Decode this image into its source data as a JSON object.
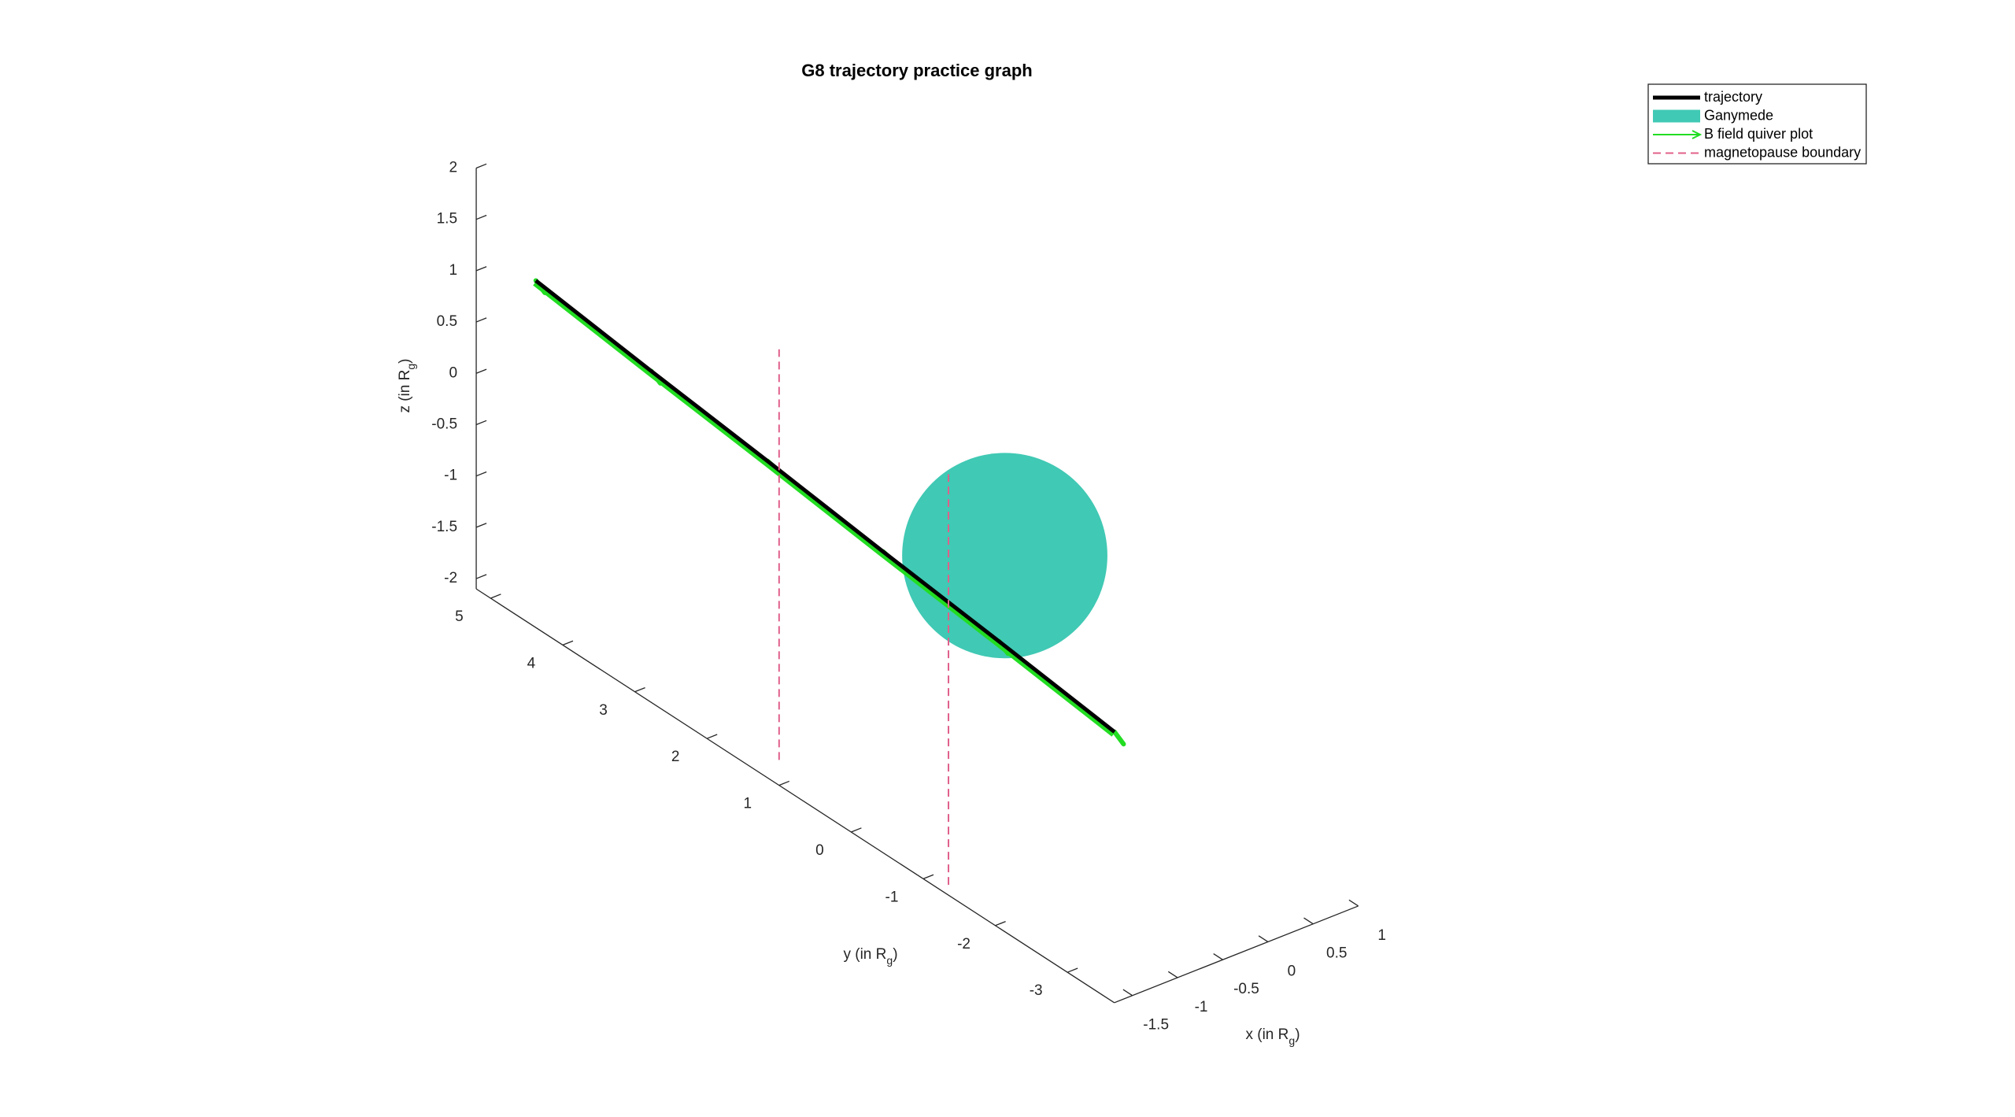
{
  "chart_data": {
    "type": "line3d",
    "title": "G8 trajectory practice graph",
    "xlabel": [
      "x (in R",
      "g",
      ")"
    ],
    "ylabel": [
      "y (in R",
      "g",
      ")"
    ],
    "zlabel": [
      "z (in R",
      "g",
      ")"
    ],
    "xlim": [
      -1.7,
      1.0
    ],
    "ylim": [
      -3.65,
      5.2
    ],
    "zlim": [
      -2.1,
      2
    ],
    "xticks": [
      -1.5,
      -1,
      -0.5,
      0,
      0.5,
      1
    ],
    "yticks": [
      -3,
      -2,
      -1,
      0,
      1,
      2,
      3,
      4,
      5
    ],
    "zticks": [
      -2,
      -1.5,
      -1,
      -0.5,
      0,
      0.5,
      1,
      1.5,
      2
    ],
    "legend": "northeast",
    "series": [
      {
        "name": "trajectory",
        "type": "line",
        "color": "#000000",
        "x": [
          -1.2,
          -0.8,
          -0.4,
          0,
          0.4,
          0.8
        ],
        "y": [
          5,
          3.9,
          2.79,
          1.69,
          0.58,
          -0.52
        ],
        "z": [
          0.82,
          0.3,
          -0.21,
          -0.73,
          -1.24,
          -1.76
        ]
      },
      {
        "name": "Ganymede",
        "type": "sphere",
        "color": "#40c9b4",
        "center": [
          0,
          0,
          0
        ],
        "radius": 1
      },
      {
        "name": "B field quiver plot",
        "type": "quiver",
        "color": "#22dd22",
        "x": [
          -1.2,
          -0.8,
          -0.4,
          0,
          0.4,
          0.8
        ],
        "y": [
          5,
          3.9,
          2.79,
          1.69,
          0.58,
          -0.52
        ],
        "z": [
          0.82,
          0.3,
          -0.21,
          -0.73,
          -1.24,
          -1.76
        ],
        "u": [
          0.02,
          0.02,
          0.08,
          0.06,
          0.02,
          0.02
        ],
        "v": [
          -0.1,
          -0.1,
          -0.4,
          -0.3,
          -0.1,
          -0.1
        ],
        "w": [
          -0.08,
          -0.08,
          -0.15,
          -0.12,
          -0.08,
          -0.08
        ]
      },
      {
        "name": "magnetopause boundary",
        "type": "boundary",
        "color": "#e0608a",
        "x": [
          -1.54,
          -1.7
        ],
        "y": [
          1.2,
          -1.35
        ],
        "z": [
          [
            -2,
            2
          ],
          [
            -2,
            2
          ]
        ]
      }
    ]
  }
}
